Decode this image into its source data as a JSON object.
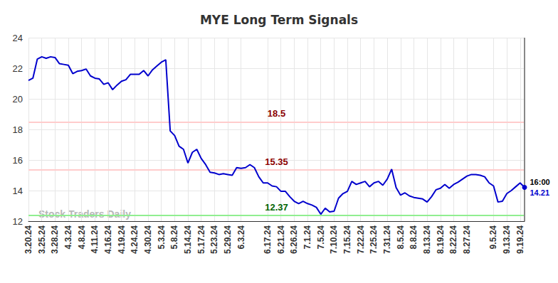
{
  "chart_data": {
    "type": "line",
    "title": "MYE Long Term Signals",
    "categories": [
      "3.20.24",
      null,
      null,
      "3.25.24",
      null,
      null,
      "3.28.24",
      null,
      null,
      "4.3.24",
      null,
      null,
      "4.8.24",
      null,
      null,
      "4.11.24",
      null,
      null,
      "4.16.24",
      null,
      null,
      "4.19.24",
      null,
      null,
      "4.24.24",
      null,
      null,
      "4.30.24",
      null,
      null,
      "5.3.24",
      null,
      null,
      "5.8.24",
      null,
      null,
      "5.14.24",
      null,
      null,
      "5.17.24",
      null,
      null,
      "5.23.24",
      null,
      null,
      "5.29.24",
      null,
      null,
      "6.3.24",
      null,
      null,
      null,
      null,
      null,
      "6.17.24",
      null,
      null,
      "6.21.24",
      null,
      null,
      "6.26.24",
      null,
      null,
      "7.1.24",
      null,
      null,
      "7.5.24",
      null,
      null,
      "7.10.24",
      null,
      null,
      "7.15.24",
      null,
      null,
      "7.22.24",
      null,
      null,
      "7.25.24",
      null,
      null,
      "7.31.24",
      null,
      null,
      "8.5.24",
      null,
      null,
      "8.8.24",
      null,
      null,
      "8.13.24",
      null,
      null,
      "8.19.24",
      null,
      null,
      "8.22.24",
      null,
      null,
      "8.27.24",
      null,
      null,
      null,
      null,
      null,
      "9.5.24",
      null,
      null,
      "9.13.24",
      null,
      null,
      "9.19.24",
      null
    ],
    "values": [
      21.2,
      21.35,
      22.6,
      22.75,
      22.65,
      22.75,
      22.7,
      22.3,
      22.25,
      22.2,
      21.65,
      21.8,
      21.85,
      21.95,
      21.5,
      21.35,
      21.3,
      20.95,
      21.05,
      20.6,
      20.9,
      21.15,
      21.25,
      21.6,
      21.6,
      21.6,
      21.85,
      21.5,
      21.9,
      22.15,
      22.4,
      22.55,
      17.9,
      17.6,
      16.9,
      16.7,
      15.8,
      16.5,
      16.7,
      16.1,
      15.7,
      15.2,
      15.15,
      15.05,
      15.1,
      15.05,
      15.0,
      15.5,
      15.45,
      15.5,
      15.7,
      15.5,
      14.9,
      14.5,
      14.5,
      14.3,
      14.25,
      13.95,
      13.95,
      13.6,
      13.3,
      13.15,
      13.3,
      13.15,
      13.05,
      12.9,
      12.45,
      12.85,
      12.6,
      12.65,
      13.5,
      13.8,
      13.95,
      14.6,
      14.4,
      14.5,
      14.6,
      14.25,
      14.5,
      14.6,
      14.35,
      14.75,
      15.4,
      14.2,
      13.7,
      13.85,
      13.65,
      13.55,
      13.5,
      13.45,
      13.25,
      13.6,
      14.05,
      14.15,
      14.4,
      14.15,
      14.4,
      14.55,
      14.75,
      14.95,
      15.05,
      15.05,
      15.0,
      14.9,
      14.5,
      14.3,
      13.25,
      13.3,
      13.8,
      14.0,
      14.25,
      14.5,
      14.21
    ],
    "color": "#0000cd",
    "ylim": [
      12,
      24
    ],
    "yticks": [
      12,
      14,
      16,
      18,
      20,
      22,
      24
    ],
    "grid": true,
    "reference_lines": [
      {
        "value": 18.5,
        "color": "#ffcccc",
        "text_color": "#8b0000"
      },
      {
        "value": 15.35,
        "color": "#ffcccc",
        "text_color": "#8b0000"
      },
      {
        "value": 12.37,
        "color": "#90ee90",
        "text_color": "#006400"
      }
    ],
    "end_label": "16:00",
    "watermark": "Stock Traders Daily"
  }
}
